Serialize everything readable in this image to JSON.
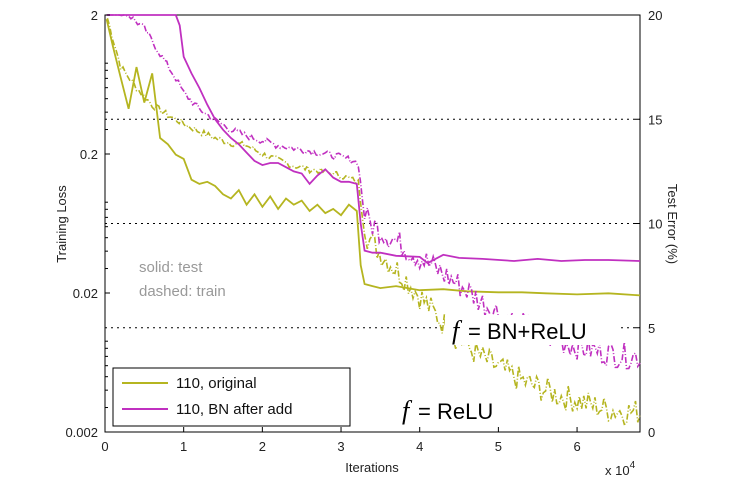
{
  "chart_data": {
    "type": "line",
    "xlabel": "Iterations",
    "x_multiplier": "x 10",
    "x_multiplier_exp": "4",
    "ylabel_left": "Training Loss",
    "ylabel_right": "Test Error (%)",
    "xlim": [
      0,
      6.8
    ],
    "ylim_left": [
      0.002,
      2
    ],
    "ylim_right": [
      0,
      20
    ],
    "y_left_scale": "log",
    "x_ticks": [
      "0",
      "1",
      "2",
      "3",
      "4",
      "5",
      "6"
    ],
    "y_left_ticks": [
      "2",
      "0.2",
      "0.02",
      "0.002"
    ],
    "y_right_ticks": [
      "20",
      "15",
      "10",
      "5",
      "0"
    ],
    "grid": "dotted horizontal at test error 5, 10, 15",
    "notes": [
      "solid: test",
      "dashed: train"
    ],
    "annotations": [
      {
        "f": "f",
        "rest": "= BN+ReLU"
      },
      {
        "f": "f",
        "rest": "= ReLU"
      }
    ],
    "legend_placement": "bottom-left",
    "colors": {
      "original": "#b5b520",
      "bn_after_add": "#c030c0"
    },
    "series": [
      {
        "name": "110, original",
        "color": "#b5b520",
        "test_error": [
          [
            0.02,
            19.8
          ],
          [
            0.1,
            18.5
          ],
          [
            0.2,
            17.0
          ],
          [
            0.3,
            15.5
          ],
          [
            0.4,
            17.5
          ],
          [
            0.5,
            15.8
          ],
          [
            0.6,
            17.2
          ],
          [
            0.7,
            14.1
          ],
          [
            0.8,
            13.8
          ],
          [
            0.9,
            13.3
          ],
          [
            1.0,
            13.1
          ],
          [
            1.1,
            12.1
          ],
          [
            1.2,
            11.9
          ],
          [
            1.3,
            12.0
          ],
          [
            1.4,
            11.8
          ],
          [
            1.5,
            11.4
          ],
          [
            1.6,
            11.2
          ],
          [
            1.7,
            11.6
          ],
          [
            1.8,
            10.9
          ],
          [
            1.9,
            11.4
          ],
          [
            2.0,
            10.8
          ],
          [
            2.1,
            11.3
          ],
          [
            2.2,
            10.7
          ],
          [
            2.3,
            11.2
          ],
          [
            2.4,
            10.9
          ],
          [
            2.5,
            11.1
          ],
          [
            2.6,
            10.6
          ],
          [
            2.7,
            10.9
          ],
          [
            2.8,
            10.5
          ],
          [
            2.9,
            10.7
          ],
          [
            3.0,
            10.4
          ],
          [
            3.1,
            10.9
          ],
          [
            3.2,
            10.6
          ],
          [
            3.25,
            8.0
          ],
          [
            3.3,
            7.1
          ],
          [
            3.4,
            7.0
          ],
          [
            3.5,
            6.9
          ],
          [
            3.7,
            7.0
          ],
          [
            4.0,
            6.8
          ],
          [
            4.3,
            6.85
          ],
          [
            4.6,
            6.75
          ],
          [
            5.0,
            6.7
          ],
          [
            5.3,
            6.7
          ],
          [
            5.6,
            6.65
          ],
          [
            6.0,
            6.6
          ],
          [
            6.4,
            6.65
          ],
          [
            6.8,
            6.55
          ]
        ],
        "train_loss": [
          [
            0.03,
            1.9
          ],
          [
            0.2,
            0.85
          ],
          [
            0.4,
            0.6
          ],
          [
            0.6,
            0.45
          ],
          [
            0.8,
            0.38
          ],
          [
            1.0,
            0.33
          ],
          [
            1.2,
            0.29
          ],
          [
            1.4,
            0.26
          ],
          [
            1.6,
            0.24
          ],
          [
            1.8,
            0.23
          ],
          [
            2.0,
            0.2
          ],
          [
            2.2,
            0.18
          ],
          [
            2.4,
            0.165
          ],
          [
            2.6,
            0.155
          ],
          [
            2.8,
            0.148
          ],
          [
            3.0,
            0.14
          ],
          [
            3.15,
            0.13
          ],
          [
            3.22,
            0.125
          ],
          [
            3.3,
            0.055
          ],
          [
            3.4,
            0.045
          ],
          [
            3.6,
            0.034
          ],
          [
            3.8,
            0.026
          ],
          [
            4.0,
            0.019
          ],
          [
            4.2,
            0.014
          ],
          [
            4.4,
            0.0105
          ],
          [
            4.6,
            0.0082
          ],
          [
            4.8,
            0.0068
          ],
          [
            5.0,
            0.0058
          ],
          [
            5.2,
            0.005
          ],
          [
            5.4,
            0.0044
          ],
          [
            5.6,
            0.004
          ],
          [
            5.8,
            0.0036
          ],
          [
            6.0,
            0.0034
          ],
          [
            6.2,
            0.0031
          ],
          [
            6.4,
            0.0029
          ],
          [
            6.6,
            0.0028
          ],
          [
            6.8,
            0.0028
          ]
        ]
      },
      {
        "name": "110, BN after add",
        "color": "#c030c0",
        "test_error": [
          [
            0.02,
            22.0
          ],
          [
            0.9,
            22.0
          ],
          [
            0.95,
            19.5
          ],
          [
            1.0,
            18.0
          ],
          [
            1.1,
            17.2
          ],
          [
            1.2,
            16.5
          ],
          [
            1.3,
            15.7
          ],
          [
            1.4,
            15.0
          ],
          [
            1.5,
            14.5
          ],
          [
            1.6,
            14.1
          ],
          [
            1.7,
            13.8
          ],
          [
            1.8,
            13.4
          ],
          [
            1.9,
            13.0
          ],
          [
            2.0,
            12.8
          ],
          [
            2.1,
            12.9
          ],
          [
            2.2,
            12.9
          ],
          [
            2.3,
            12.7
          ],
          [
            2.4,
            12.5
          ],
          [
            2.5,
            12.4
          ],
          [
            2.6,
            11.9
          ],
          [
            2.7,
            12.3
          ],
          [
            2.8,
            12.6
          ],
          [
            2.9,
            12.2
          ],
          [
            3.0,
            12.0
          ],
          [
            3.1,
            12.0
          ],
          [
            3.2,
            11.9
          ],
          [
            3.25,
            10.0
          ],
          [
            3.3,
            8.7
          ],
          [
            3.4,
            8.6
          ],
          [
            3.5,
            8.6
          ],
          [
            3.7,
            8.45
          ],
          [
            4.0,
            8.4
          ],
          [
            4.1,
            8.1
          ],
          [
            4.3,
            8.5
          ],
          [
            4.5,
            8.35
          ],
          [
            4.8,
            8.3
          ],
          [
            5.2,
            8.2
          ],
          [
            5.5,
            8.3
          ],
          [
            5.8,
            8.2
          ],
          [
            6.1,
            8.25
          ],
          [
            6.4,
            8.25
          ],
          [
            6.8,
            8.2
          ]
        ],
        "train_loss": [
          [
            0.03,
            2.3
          ],
          [
            0.3,
            2.0
          ],
          [
            0.5,
            1.6
          ],
          [
            0.7,
            1.05
          ],
          [
            0.9,
            0.7
          ],
          [
            1.0,
            0.55
          ],
          [
            1.2,
            0.42
          ],
          [
            1.4,
            0.35
          ],
          [
            1.6,
            0.3
          ],
          [
            1.8,
            0.27
          ],
          [
            2.0,
            0.25
          ],
          [
            2.2,
            0.23
          ],
          [
            2.4,
            0.22
          ],
          [
            2.6,
            0.21
          ],
          [
            2.8,
            0.2
          ],
          [
            3.0,
            0.19
          ],
          [
            3.15,
            0.18
          ],
          [
            3.22,
            0.17
          ],
          [
            3.3,
            0.07
          ],
          [
            3.4,
            0.062
          ],
          [
            3.6,
            0.052
          ],
          [
            3.8,
            0.043
          ],
          [
            4.0,
            0.036
          ],
          [
            4.2,
            0.03
          ],
          [
            4.4,
            0.025
          ],
          [
            4.6,
            0.021
          ],
          [
            4.8,
            0.017
          ],
          [
            5.0,
            0.0145
          ],
          [
            5.2,
            0.0125
          ],
          [
            5.4,
            0.011
          ],
          [
            5.6,
            0.0098
          ],
          [
            5.8,
            0.009
          ],
          [
            6.0,
            0.0083
          ],
          [
            6.2,
            0.0078
          ],
          [
            6.4,
            0.0074
          ],
          [
            6.6,
            0.0071
          ],
          [
            6.8,
            0.007
          ]
        ]
      }
    ]
  }
}
